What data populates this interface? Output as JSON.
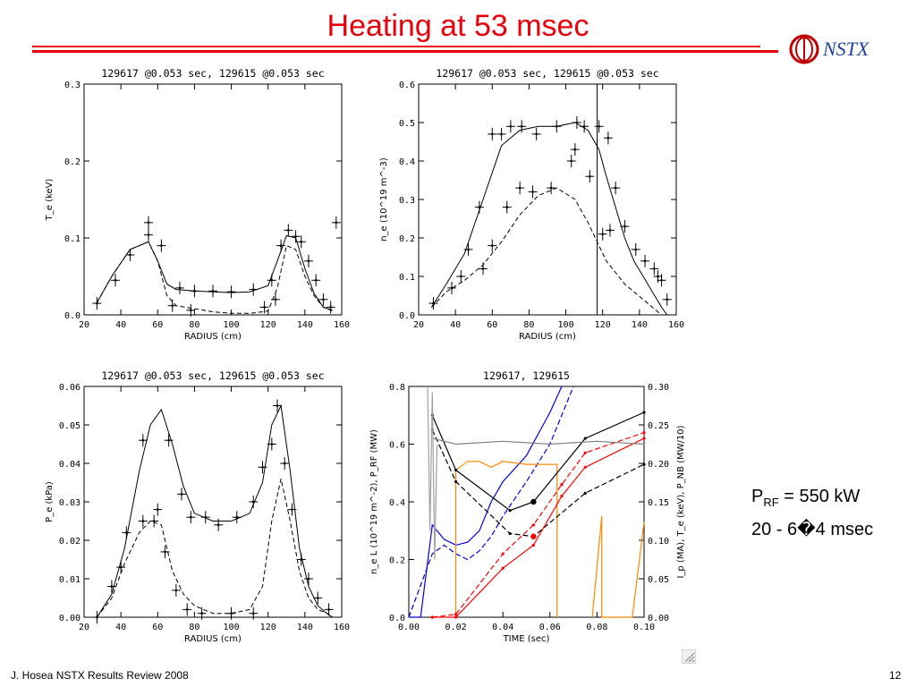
{
  "slide": {
    "title": "Heating at 53 msec",
    "logo_text": "NSTX",
    "annotation_line1_main": "P",
    "annotation_line1_sub": "RF",
    "annotation_line1_rest": " = 550 kW",
    "annotation_line2": "20 - 6�4 msec",
    "footer_left": "J. Hosea  NSTX Results Review 2008",
    "footer_right": "12",
    "accent_color": "#e8000b",
    "logo_color": "#1f3fa0"
  },
  "chart_data": [
    {
      "id": "te",
      "type": "scatter",
      "title": "129617 @0.053 sec, 129615 @0.053 sec",
      "xlabel": "RADIUS (cm)",
      "ylabel": "T_e (keV)",
      "xlim": [
        20,
        160
      ],
      "ylim": [
        0,
        0.3
      ],
      "xticks": [
        "20",
        "40",
        "60",
        "80",
        "100",
        "120",
        "140",
        "160"
      ],
      "yticks": [
        "0.0",
        "0.1",
        "0.2",
        "0.3"
      ],
      "series": [
        {
          "style": "solid",
          "x": [
            27,
            35,
            45,
            55,
            60,
            65,
            70,
            80,
            90,
            100,
            110,
            120,
            125,
            130,
            135,
            140,
            145,
            150,
            155
          ],
          "y": [
            0.016,
            0.05,
            0.085,
            0.095,
            0.07,
            0.04,
            0.033,
            0.031,
            0.03,
            0.029,
            0.03,
            0.038,
            0.07,
            0.103,
            0.1,
            0.06,
            0.028,
            0.01,
            0.006
          ]
        },
        {
          "style": "dashed",
          "x": [
            27,
            35,
            45,
            55,
            60,
            65,
            70,
            80,
            90,
            100,
            110,
            120,
            125,
            130,
            135,
            140,
            145,
            150,
            155
          ],
          "y": [
            0.016,
            0.05,
            0.085,
            0.095,
            0.07,
            0.025,
            0.012,
            0.008,
            0.004,
            0.002,
            0.002,
            0.005,
            0.035,
            0.09,
            0.085,
            0.05,
            0.025,
            0.01,
            0.005
          ]
        }
      ],
      "points": [
        {
          "x": 27,
          "y": 0.015
        },
        {
          "x": 37,
          "y": 0.045
        },
        {
          "x": 45,
          "y": 0.078
        },
        {
          "x": 55,
          "y": 0.104
        },
        {
          "x": 55,
          "y": 0.12
        },
        {
          "x": 62,
          "y": 0.09
        },
        {
          "x": 72,
          "y": 0.035
        },
        {
          "x": 80,
          "y": 0.031
        },
        {
          "x": 90,
          "y": 0.031
        },
        {
          "x": 100,
          "y": 0.03
        },
        {
          "x": 112,
          "y": 0.033
        },
        {
          "x": 122,
          "y": 0.045
        },
        {
          "x": 127,
          "y": 0.09
        },
        {
          "x": 131,
          "y": 0.11
        },
        {
          "x": 135,
          "y": 0.102
        },
        {
          "x": 138,
          "y": 0.095
        },
        {
          "x": 142,
          "y": 0.07
        },
        {
          "x": 146,
          "y": 0.045
        },
        {
          "x": 150,
          "y": 0.02
        },
        {
          "x": 154,
          "y": 0.01
        },
        {
          "x": 157,
          "y": 0.12
        },
        {
          "x": 68,
          "y": 0.012
        },
        {
          "x": 78,
          "y": 0.006
        },
        {
          "x": 118,
          "y": 0.01
        },
        {
          "x": 124,
          "y": 0.02
        }
      ]
    },
    {
      "id": "ne",
      "type": "scatter",
      "title": "129617 @0.053 sec, 129615 @0.053 sec",
      "xlabel": "RADIUS (cm)",
      "ylabel": "n_e (10^19 m^-3)",
      "xlim": [
        20,
        160
      ],
      "ylim": [
        0,
        0.6
      ],
      "xticks": [
        "20",
        "40",
        "60",
        "80",
        "100",
        "120",
        "140",
        "160"
      ],
      "yticks": [
        "0.0",
        "0.1",
        "0.2",
        "0.3",
        "0.4",
        "0.5",
        "0.6"
      ],
      "vline_x": 117,
      "series": [
        {
          "style": "solid",
          "x": [
            27,
            35,
            45,
            55,
            65,
            75,
            85,
            95,
            105,
            112,
            118,
            122,
            127,
            132,
            137,
            142,
            147,
            152,
            155
          ],
          "y": [
            0.02,
            0.08,
            0.16,
            0.3,
            0.44,
            0.48,
            0.49,
            0.49,
            0.5,
            0.48,
            0.43,
            0.36,
            0.28,
            0.2,
            0.14,
            0.1,
            0.06,
            0.02,
            0.0
          ]
        },
        {
          "style": "dashed",
          "x": [
            27,
            35,
            45,
            55,
            65,
            75,
            85,
            95,
            105,
            112,
            118,
            122,
            127,
            132,
            137,
            142,
            147,
            152
          ],
          "y": [
            0.02,
            0.06,
            0.09,
            0.13,
            0.19,
            0.26,
            0.31,
            0.33,
            0.3,
            0.24,
            0.18,
            0.14,
            0.11,
            0.08,
            0.06,
            0.04,
            0.02,
            0.0
          ]
        }
      ],
      "points": [
        {
          "x": 28,
          "y": 0.03
        },
        {
          "x": 38,
          "y": 0.07
        },
        {
          "x": 43,
          "y": 0.1
        },
        {
          "x": 47,
          "y": 0.17
        },
        {
          "x": 53,
          "y": 0.28
        },
        {
          "x": 60,
          "y": 0.47
        },
        {
          "x": 65,
          "y": 0.47
        },
        {
          "x": 70,
          "y": 0.49
        },
        {
          "x": 76,
          "y": 0.49
        },
        {
          "x": 84,
          "y": 0.47
        },
        {
          "x": 95,
          "y": 0.49
        },
        {
          "x": 103,
          "y": 0.4
        },
        {
          "x": 106,
          "y": 0.5
        },
        {
          "x": 110,
          "y": 0.49
        },
        {
          "x": 118,
          "y": 0.49
        },
        {
          "x": 123,
          "y": 0.46
        },
        {
          "x": 127,
          "y": 0.33
        },
        {
          "x": 132,
          "y": 0.23
        },
        {
          "x": 138,
          "y": 0.17
        },
        {
          "x": 143,
          "y": 0.14
        },
        {
          "x": 148,
          "y": 0.12
        },
        {
          "x": 152,
          "y": 0.09
        },
        {
          "x": 155,
          "y": 0.04
        },
        {
          "x": 55,
          "y": 0.12
        },
        {
          "x": 60,
          "y": 0.18
        },
        {
          "x": 68,
          "y": 0.28
        },
        {
          "x": 75,
          "y": 0.33
        },
        {
          "x": 82,
          "y": 0.32
        },
        {
          "x": 92,
          "y": 0.33
        },
        {
          "x": 105,
          "y": 0.43
        },
        {
          "x": 113,
          "y": 0.36
        },
        {
          "x": 120,
          "y": 0.21
        },
        {
          "x": 124,
          "y": 0.22
        },
        {
          "x": 150,
          "y": 0.1
        }
      ]
    },
    {
      "id": "pe",
      "type": "scatter",
      "title": "129617 @0.053 sec, 129615 @0.053 sec",
      "xlabel": "RADIUS (cm)",
      "ylabel": "P_e (kPa)",
      "xlim": [
        20,
        160
      ],
      "ylim": [
        0,
        0.06
      ],
      "xticks": [
        "20",
        "40",
        "60",
        "80",
        "100",
        "120",
        "140",
        "160"
      ],
      "yticks": [
        "0.00",
        "0.01",
        "0.02",
        "0.03",
        "0.04",
        "0.05",
        "0.06"
      ],
      "series": [
        {
          "style": "solid",
          "x": [
            27,
            35,
            42,
            50,
            56,
            62,
            68,
            74,
            80,
            90,
            100,
            110,
            117,
            122,
            127,
            132,
            137,
            142,
            147,
            152,
            155
          ],
          "y": [
            0.0,
            0.006,
            0.018,
            0.038,
            0.05,
            0.054,
            0.045,
            0.034,
            0.027,
            0.025,
            0.025,
            0.027,
            0.035,
            0.05,
            0.055,
            0.038,
            0.018,
            0.008,
            0.003,
            0.001,
            0.0
          ]
        },
        {
          "style": "dashed",
          "x": [
            27,
            35,
            42,
            50,
            56,
            62,
            68,
            74,
            80,
            90,
            100,
            110,
            117,
            122,
            127,
            132,
            137,
            142,
            147,
            152,
            155
          ],
          "y": [
            0.0,
            0.005,
            0.014,
            0.022,
            0.025,
            0.024,
            0.012,
            0.006,
            0.003,
            0.001,
            0.001,
            0.002,
            0.008,
            0.025,
            0.036,
            0.025,
            0.012,
            0.005,
            0.002,
            0.001,
            0.0
          ]
        }
      ],
      "points": [
        {
          "x": 27,
          "y": 0.0
        },
        {
          "x": 35,
          "y": 0.008
        },
        {
          "x": 40,
          "y": 0.013
        },
        {
          "x": 43,
          "y": 0.022
        },
        {
          "x": 52,
          "y": 0.046
        },
        {
          "x": 60,
          "y": 0.028
        },
        {
          "x": 66,
          "y": 0.046
        },
        {
          "x": 73,
          "y": 0.032
        },
        {
          "x": 78,
          "y": 0.026
        },
        {
          "x": 86,
          "y": 0.026
        },
        {
          "x": 93,
          "y": 0.024
        },
        {
          "x": 103,
          "y": 0.026
        },
        {
          "x": 112,
          "y": 0.03
        },
        {
          "x": 117,
          "y": 0.039
        },
        {
          "x": 122,
          "y": 0.045
        },
        {
          "x": 125,
          "y": 0.055
        },
        {
          "x": 129,
          "y": 0.04
        },
        {
          "x": 133,
          "y": 0.028
        },
        {
          "x": 138,
          "y": 0.015
        },
        {
          "x": 142,
          "y": 0.01
        },
        {
          "x": 147,
          "y": 0.005
        },
        {
          "x": 153,
          "y": 0.002
        },
        {
          "x": 52,
          "y": 0.025
        },
        {
          "x": 58,
          "y": 0.025
        },
        {
          "x": 64,
          "y": 0.017
        },
        {
          "x": 70,
          "y": 0.007
        },
        {
          "x": 76,
          "y": 0.002
        },
        {
          "x": 84,
          "y": 0.001
        },
        {
          "x": 100,
          "y": 0.001
        },
        {
          "x": 112,
          "y": 0.001
        }
      ]
    },
    {
      "id": "time",
      "type": "line",
      "title": "129617, 129615",
      "xlabel": "TIME (sec)",
      "ylabel_left": "n_e L (10^19 m^-2), P_RF (MW)",
      "ylabel_right": "I_p (MA), T_e (keV), P_NB (MW/10)",
      "xlim": [
        0.0,
        0.1
      ],
      "ylim_left": [
        0.0,
        0.8
      ],
      "ylim_right": [
        0.0,
        0.3
      ],
      "xticks": [
        "0.00",
        "0.02",
        "0.04",
        "0.06",
        "0.08",
        "0.10"
      ],
      "yticks_left": [
        "0.0",
        "0.2",
        "0.4",
        "0.6",
        "0.8"
      ],
      "yticks_right": [
        "0.00",
        "0.05",
        "0.10",
        "0.15",
        "0.20",
        "0.25",
        "0.30"
      ],
      "series": [
        {
          "color": "#0000dd",
          "style": "solid",
          "x": [
            0.0,
            0.005,
            0.01,
            0.015,
            0.02,
            0.025,
            0.03,
            0.035,
            0.04,
            0.05,
            0.06,
            0.065
          ],
          "y": [
            0.0,
            0.0,
            0.32,
            0.27,
            0.25,
            0.26,
            0.3,
            0.4,
            0.47,
            0.56,
            0.71,
            0.8
          ]
        },
        {
          "color": "#0000dd",
          "style": "dashed",
          "x": [
            0.0,
            0.01,
            0.015,
            0.02,
            0.025,
            0.03,
            0.035,
            0.04,
            0.05,
            0.06,
            0.07
          ],
          "y": [
            0.0,
            0.22,
            0.25,
            0.22,
            0.2,
            0.23,
            0.28,
            0.35,
            0.47,
            0.6,
            0.8
          ]
        },
        {
          "color": "#ff8800",
          "style": "solid",
          "x": [
            0.02,
            0.02,
            0.025,
            0.03,
            0.035,
            0.04,
            0.05,
            0.06,
            0.063,
            0.063
          ],
          "y": [
            0.0,
            0.51,
            0.54,
            0.54,
            0.52,
            0.54,
            0.53,
            0.53,
            0.53,
            0.0
          ]
        },
        {
          "color": "#ff8800",
          "style": "solid",
          "x": [
            0.078,
            0.082,
            0.082,
            0.085,
            0.09,
            0.095,
            0.1
          ],
          "y": [
            0.0,
            0.35,
            0.0,
            0.0,
            0.0,
            0.0,
            0.33
          ]
        },
        {
          "color": "#000000",
          "style": "solid",
          "x": [
            0.01,
            0.02,
            0.043,
            0.053,
            0.075,
            0.1
          ],
          "y": [
            0.7,
            0.51,
            0.37,
            0.4,
            0.62,
            0.71
          ]
        },
        {
          "color": "#000000",
          "style": "dashed",
          "x": [
            0.01,
            0.02,
            0.043,
            0.053,
            0.075,
            0.1
          ],
          "y": [
            0.65,
            0.47,
            0.29,
            0.28,
            0.43,
            0.53
          ]
        },
        {
          "color": "#ff0000",
          "style": "solid",
          "x": [
            0.01,
            0.02,
            0.04,
            0.053,
            0.065,
            0.075,
            0.1
          ],
          "y": [
            0.0,
            0.0,
            0.17,
            0.25,
            0.42,
            0.52,
            0.62
          ]
        },
        {
          "color": "#ff0000",
          "style": "dashed",
          "x": [
            0.01,
            0.02,
            0.04,
            0.053,
            0.065,
            0.075,
            0.1
          ],
          "y": [
            0.0,
            0.01,
            0.22,
            0.32,
            0.46,
            0.57,
            0.64
          ]
        },
        {
          "color": "#808080",
          "style": "solid",
          "x": [
            0.01,
            0.02,
            0.04,
            0.06,
            0.08,
            0.1
          ],
          "y": [
            0.62,
            0.6,
            0.61,
            0.6,
            0.61,
            0.6
          ]
        },
        {
          "color": "#a0a0a0",
          "style": "solid",
          "x": [
            0.008,
            0.009,
            0.01,
            0.011,
            0.012
          ],
          "y": [
            0.8,
            0.3,
            0.78,
            0.2,
            0.6
          ]
        }
      ],
      "markers": [
        {
          "x": 0.053,
          "y": 0.4,
          "color": "#000000"
        },
        {
          "x": 0.053,
          "y": 0.28,
          "color": "#ff0000"
        }
      ]
    }
  ]
}
